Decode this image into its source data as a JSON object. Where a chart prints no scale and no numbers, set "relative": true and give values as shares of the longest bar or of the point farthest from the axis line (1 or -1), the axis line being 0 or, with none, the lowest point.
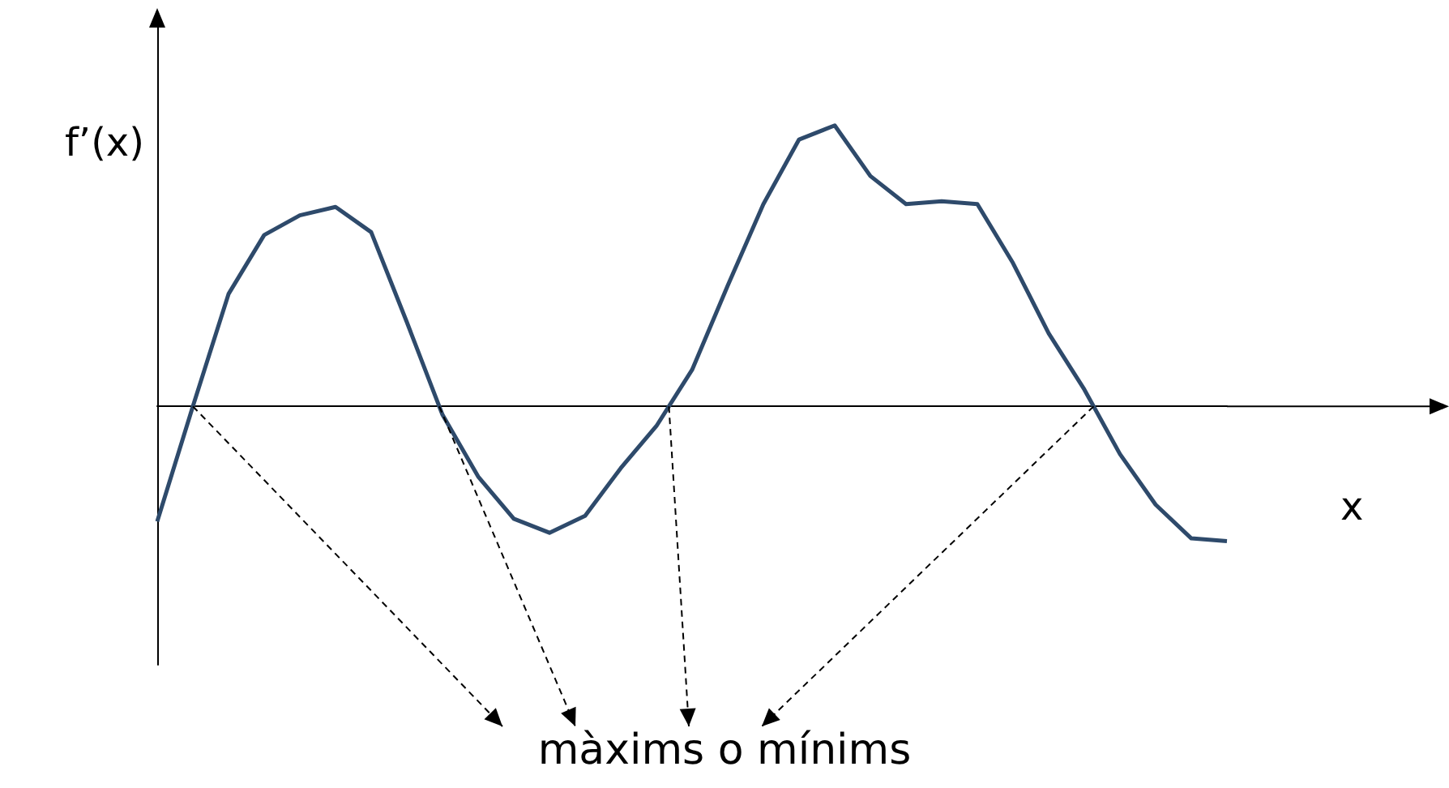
{
  "chart_data": {
    "type": "line",
    "relative": true,
    "ylabel": "f’(x)",
    "xlabel": "x",
    "color": "#2e4a6b",
    "marker": "none",
    "grid": false,
    "categories": [
      null,
      null,
      null,
      null,
      null,
      null,
      null,
      null,
      null,
      null,
      null,
      null,
      null,
      null,
      null,
      null,
      null,
      null,
      null,
      null,
      null,
      null,
      null,
      null,
      null,
      null,
      null,
      null,
      null,
      null,
      null
    ],
    "values": [
      -0.41,
      0.0,
      0.4,
      0.61,
      0.68,
      0.71,
      0.62,
      0.3,
      -0.03,
      -0.25,
      -0.4,
      -0.45,
      -0.39,
      -0.22,
      -0.07,
      0.13,
      0.43,
      0.72,
      0.95,
      1.0,
      0.82,
      0.72,
      0.73,
      0.72,
      0.51,
      0.26,
      0.06,
      -0.17,
      -0.35,
      -0.47,
      -0.48
    ],
    "annotations": [
      "màxims o mínims"
    ]
  }
}
